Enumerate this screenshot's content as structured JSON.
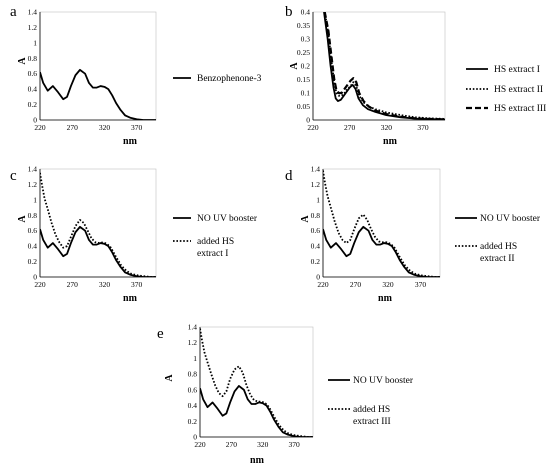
{
  "figure": {
    "background": "#ffffff",
    "series_color": "#000000"
  },
  "chart_data": [
    {
      "panel": "a",
      "type": "line",
      "xlabel": "nm",
      "ylabel": "A",
      "xlim": [
        220,
        400
      ],
      "ylim": [
        0,
        1.4
      ],
      "x_ticks": [
        220,
        270,
        320,
        370
      ],
      "y_ticks": [
        0,
        0.2,
        0.4,
        0.6,
        0.8,
        1,
        1.2,
        1.4
      ],
      "y_tick_labels": [
        "0",
        "0.2",
        "0.4",
        "0.6",
        "0.8",
        "1",
        "1.2",
        "1.4"
      ],
      "legend": "right",
      "grid": "none",
      "series": [
        {
          "name": "Benzophenone-3",
          "style": "solid",
          "x": [
            220,
            225,
            232,
            240,
            248,
            256,
            262,
            268,
            275,
            282,
            290,
            296,
            302,
            308,
            314,
            320,
            326,
            332,
            338,
            345,
            352,
            360,
            370,
            380,
            390,
            400
          ],
          "y": [
            0.62,
            0.48,
            0.38,
            0.44,
            0.36,
            0.27,
            0.3,
            0.44,
            0.58,
            0.65,
            0.6,
            0.48,
            0.42,
            0.42,
            0.44,
            0.43,
            0.4,
            0.32,
            0.22,
            0.13,
            0.06,
            0.03,
            0.01,
            0.0,
            0.0,
            0.0
          ]
        }
      ]
    },
    {
      "panel": "b",
      "type": "line",
      "xlabel": "nm",
      "ylabel": "A",
      "xlim": [
        220,
        400
      ],
      "ylim": [
        0,
        0.4
      ],
      "x_ticks": [
        220,
        270,
        320,
        370
      ],
      "y_ticks": [
        0,
        0.05,
        0.1,
        0.15,
        0.2,
        0.25,
        0.3,
        0.35,
        0.4
      ],
      "y_tick_labels": [
        "0",
        "0.05",
        "0.1",
        "0.15",
        "0.2",
        "0.25",
        "0.3",
        "0.35",
        "0.4"
      ],
      "legend": "right",
      "grid": "none",
      "series": [
        {
          "name": "HS extract I",
          "style": "solid",
          "x": [
            235,
            240,
            244,
            248,
            251,
            254,
            258,
            262,
            266,
            270,
            274,
            278,
            282,
            288,
            295,
            305,
            320,
            340,
            360,
            380,
            400
          ],
          "y": [
            0.4,
            0.3,
            0.2,
            0.12,
            0.08,
            0.07,
            0.075,
            0.09,
            0.105,
            0.12,
            0.13,
            0.115,
            0.08,
            0.055,
            0.04,
            0.03,
            0.018,
            0.01,
            0.005,
            0.003,
            0.002
          ]
        },
        {
          "name": "HS extract II",
          "style": "dotted",
          "x": [
            236,
            241,
            245,
            249,
            252,
            255,
            259,
            263,
            267,
            271,
            275,
            279,
            283,
            289,
            296,
            305,
            320,
            340,
            360,
            380,
            400
          ],
          "y": [
            0.4,
            0.32,
            0.22,
            0.14,
            0.1,
            0.09,
            0.09,
            0.1,
            0.115,
            0.125,
            0.14,
            0.125,
            0.09,
            0.065,
            0.05,
            0.04,
            0.028,
            0.018,
            0.01,
            0.006,
            0.004
          ]
        },
        {
          "name": "HS extract III",
          "style": "dashed",
          "x": [
            236,
            241,
            245,
            249,
            252,
            255,
            259,
            263,
            267,
            271,
            275,
            279,
            283,
            289,
            296,
            305,
            320,
            340,
            360,
            380,
            400
          ],
          "y": [
            0.4,
            0.33,
            0.24,
            0.15,
            0.11,
            0.1,
            0.1,
            0.115,
            0.13,
            0.145,
            0.155,
            0.14,
            0.1,
            0.07,
            0.05,
            0.035,
            0.022,
            0.012,
            0.006,
            0.004,
            0.002
          ]
        }
      ]
    },
    {
      "panel": "c",
      "type": "line",
      "xlabel": "nm",
      "ylabel": "A",
      "xlim": [
        220,
        400
      ],
      "ylim": [
        0,
        1.4
      ],
      "x_ticks": [
        220,
        270,
        320,
        370
      ],
      "y_ticks": [
        0,
        0.2,
        0.4,
        0.6,
        0.8,
        1,
        1.2,
        1.4
      ],
      "y_tick_labels": [
        "0",
        "0.2",
        "0.4",
        "0.6",
        "0.8",
        "1",
        "1.2",
        "1.4"
      ],
      "legend": "right",
      "grid": "none",
      "series": [
        {
          "name": "NO UV booster",
          "style": "solid",
          "x": [
            220,
            225,
            232,
            240,
            248,
            256,
            262,
            268,
            275,
            282,
            290,
            296,
            302,
            308,
            314,
            320,
            326,
            332,
            338,
            345,
            352,
            360,
            370,
            380,
            390,
            400
          ],
          "y": [
            0.62,
            0.48,
            0.38,
            0.44,
            0.36,
            0.27,
            0.3,
            0.44,
            0.58,
            0.65,
            0.6,
            0.48,
            0.42,
            0.42,
            0.44,
            0.43,
            0.4,
            0.32,
            0.22,
            0.13,
            0.06,
            0.03,
            0.01,
            0.0,
            0.0,
            0.0
          ]
        },
        {
          "name": "added HS extract I",
          "style": "dotted",
          "x": [
            220,
            223,
            227,
            232,
            238,
            244,
            250,
            256,
            262,
            268,
            275,
            282,
            288,
            294,
            300,
            306,
            312,
            318,
            324,
            330,
            338,
            346,
            354,
            362,
            372,
            382,
            392,
            400
          ],
          "y": [
            1.35,
            1.2,
            1.02,
            0.88,
            0.7,
            0.55,
            0.45,
            0.38,
            0.4,
            0.52,
            0.66,
            0.74,
            0.7,
            0.6,
            0.5,
            0.45,
            0.44,
            0.45,
            0.43,
            0.38,
            0.26,
            0.15,
            0.08,
            0.04,
            0.02,
            0.01,
            0.0,
            0.0
          ]
        }
      ]
    },
    {
      "panel": "d",
      "type": "line",
      "xlabel": "nm",
      "ylabel": "A",
      "xlim": [
        220,
        400
      ],
      "ylim": [
        0,
        1.4
      ],
      "x_ticks": [
        220,
        270,
        320,
        370
      ],
      "y_ticks": [
        0,
        0.2,
        0.4,
        0.6,
        0.8,
        1,
        1.2,
        1.4
      ],
      "y_tick_labels": [
        "0",
        "0.2",
        "0.4",
        "0.6",
        "0.8",
        "1",
        "1.2",
        "1.4"
      ],
      "legend": "right",
      "grid": "none",
      "series": [
        {
          "name": "NO UV booster",
          "style": "solid",
          "x": [
            220,
            225,
            232,
            240,
            248,
            256,
            262,
            268,
            275,
            282,
            290,
            296,
            302,
            308,
            314,
            320,
            326,
            332,
            338,
            345,
            352,
            360,
            370,
            380,
            390,
            400
          ],
          "y": [
            0.62,
            0.48,
            0.38,
            0.44,
            0.36,
            0.27,
            0.3,
            0.44,
            0.58,
            0.65,
            0.6,
            0.48,
            0.42,
            0.42,
            0.44,
            0.43,
            0.4,
            0.32,
            0.22,
            0.13,
            0.06,
            0.03,
            0.01,
            0.0,
            0.0,
            0.0
          ]
        },
        {
          "name": "added HS extract II",
          "style": "dotted",
          "x": [
            220,
            223,
            227,
            232,
            238,
            244,
            250,
            256,
            262,
            268,
            275,
            282,
            288,
            294,
            300,
            306,
            312,
            318,
            324,
            330,
            338,
            346,
            354,
            362,
            372,
            382,
            392,
            400
          ],
          "y": [
            1.38,
            1.22,
            1.05,
            0.9,
            0.72,
            0.57,
            0.48,
            0.44,
            0.48,
            0.62,
            0.76,
            0.81,
            0.74,
            0.62,
            0.52,
            0.46,
            0.45,
            0.45,
            0.43,
            0.38,
            0.26,
            0.15,
            0.08,
            0.04,
            0.02,
            0.01,
            0.0,
            0.0
          ]
        }
      ]
    },
    {
      "panel": "e",
      "type": "line",
      "xlabel": "nm",
      "ylabel": "A",
      "xlim": [
        220,
        400
      ],
      "ylim": [
        0,
        1.4
      ],
      "x_ticks": [
        220,
        270,
        320,
        370
      ],
      "y_ticks": [
        0,
        0.2,
        0.4,
        0.6,
        0.8,
        1,
        1.2,
        1.4
      ],
      "y_tick_labels": [
        "0",
        "0.2",
        "0.4",
        "0.6",
        "0.8",
        "1",
        "1.2",
        "1.4"
      ],
      "legend": "right",
      "grid": "none",
      "series": [
        {
          "name": "NO UV booster",
          "style": "solid",
          "x": [
            220,
            225,
            232,
            240,
            248,
            256,
            262,
            268,
            275,
            282,
            290,
            296,
            302,
            308,
            314,
            320,
            326,
            332,
            338,
            345,
            352,
            360,
            370,
            380,
            390,
            400
          ],
          "y": [
            0.62,
            0.48,
            0.38,
            0.44,
            0.36,
            0.27,
            0.3,
            0.44,
            0.58,
            0.65,
            0.6,
            0.48,
            0.42,
            0.42,
            0.44,
            0.43,
            0.4,
            0.32,
            0.22,
            0.13,
            0.06,
            0.03,
            0.01,
            0.0,
            0.0,
            0.0
          ]
        },
        {
          "name": "added HS extract III",
          "style": "dotted",
          "x": [
            220,
            223,
            227,
            232,
            238,
            244,
            250,
            256,
            262,
            268,
            275,
            282,
            288,
            294,
            300,
            306,
            312,
            318,
            324,
            330,
            338,
            346,
            354,
            362,
            372,
            382,
            392,
            400
          ],
          "y": [
            1.38,
            1.24,
            1.08,
            0.95,
            0.8,
            0.66,
            0.56,
            0.52,
            0.58,
            0.74,
            0.86,
            0.9,
            0.82,
            0.66,
            0.54,
            0.47,
            0.45,
            0.45,
            0.43,
            0.38,
            0.26,
            0.15,
            0.08,
            0.04,
            0.02,
            0.01,
            0.0,
            0.0
          ]
        }
      ]
    }
  ]
}
